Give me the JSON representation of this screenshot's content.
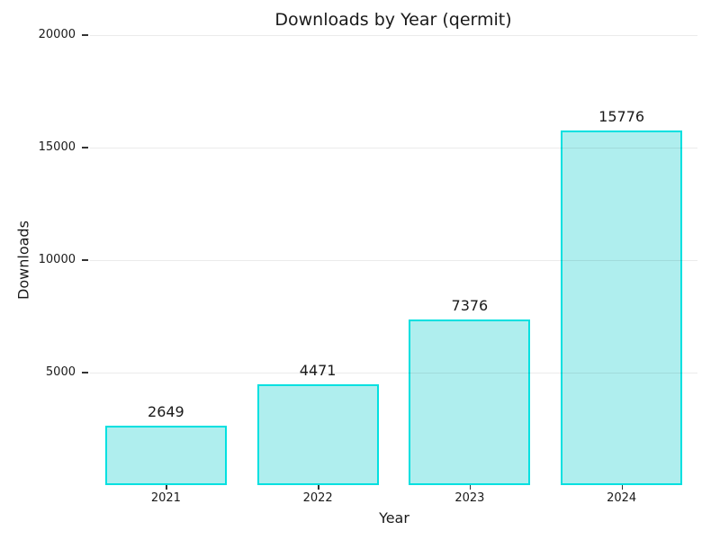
{
  "chart_data": {
    "type": "bar",
    "title": "Downloads by Year (qermit)",
    "xlabel": "Year",
    "ylabel": "Downloads",
    "categories": [
      "2021",
      "2022",
      "2023",
      "2024"
    ],
    "values": [
      2649,
      4471,
      7376,
      15776
    ],
    "bar_labels": [
      "2649",
      "4471",
      "7376",
      "15776"
    ],
    "ylim": [
      0,
      20000
    ],
    "yticks": [
      5000,
      10000,
      15000,
      20000
    ],
    "ytick_labels": [
      "5000",
      "10000",
      "15000",
      "20000"
    ],
    "grid": true,
    "legend": null,
    "colors": {
      "bar_fill": "#AFEEEE",
      "bar_edge": "#00E0E0",
      "grid_line": "rgba(0,0,0,0.08)",
      "text": "#1a1a1a",
      "background": "#ffffff"
    }
  }
}
